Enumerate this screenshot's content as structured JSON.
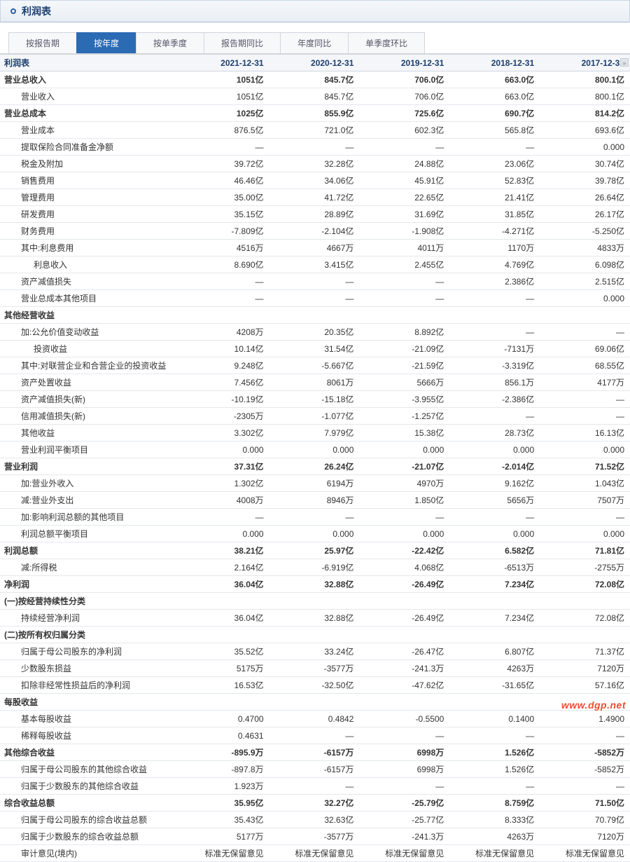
{
  "header": {
    "title": "利润表"
  },
  "tabs": [
    {
      "label": "按报告期",
      "active": false
    },
    {
      "label": "按年度",
      "active": true
    },
    {
      "label": "按单季度",
      "active": false
    },
    {
      "label": "报告期同比",
      "active": false
    },
    {
      "label": "年度同比",
      "active": false
    },
    {
      "label": "单季度环比",
      "active": false
    }
  ],
  "columns": [
    "利润表",
    "2021-12-31",
    "2020-12-31",
    "2019-12-31",
    "2018-12-31",
    "2017-12-31"
  ],
  "rows": [
    {
      "label": "营业总收入",
      "v": [
        "1051亿",
        "845.7亿",
        "706.0亿",
        "663.0亿",
        "800.1亿"
      ],
      "bold": true,
      "indent": 0
    },
    {
      "label": "营业收入",
      "v": [
        "1051亿",
        "845.7亿",
        "706.0亿",
        "663.0亿",
        "800.1亿"
      ],
      "indent": 1
    },
    {
      "label": "营业总成本",
      "v": [
        "1025亿",
        "855.9亿",
        "725.6亿",
        "690.7亿",
        "814.2亿"
      ],
      "bold": true,
      "indent": 0
    },
    {
      "label": "营业成本",
      "v": [
        "876.5亿",
        "721.0亿",
        "602.3亿",
        "565.8亿",
        "693.6亿"
      ],
      "indent": 1
    },
    {
      "label": "提取保险合同准备金净额",
      "v": [
        "—",
        "—",
        "—",
        "—",
        "0.000"
      ],
      "indent": 1
    },
    {
      "label": "税金及附加",
      "v": [
        "39.72亿",
        "32.28亿",
        "24.88亿",
        "23.06亿",
        "30.74亿"
      ],
      "indent": 1
    },
    {
      "label": "销售费用",
      "v": [
        "46.46亿",
        "34.06亿",
        "45.91亿",
        "52.83亿",
        "39.78亿"
      ],
      "indent": 1
    },
    {
      "label": "管理费用",
      "v": [
        "35.00亿",
        "41.72亿",
        "22.65亿",
        "21.41亿",
        "26.64亿"
      ],
      "indent": 1
    },
    {
      "label": "研发费用",
      "v": [
        "35.15亿",
        "28.89亿",
        "31.69亿",
        "31.85亿",
        "26.17亿"
      ],
      "indent": 1
    },
    {
      "label": "财务费用",
      "v": [
        "-7.809亿",
        "-2.104亿",
        "-1.908亿",
        "-4.271亿",
        "-5.250亿"
      ],
      "indent": 1
    },
    {
      "label": "其中:利息费用",
      "v": [
        "4516万",
        "4667万",
        "4011万",
        "1170万",
        "4833万"
      ],
      "indent": 1
    },
    {
      "label": "利息收入",
      "v": [
        "8.690亿",
        "3.415亿",
        "2.455亿",
        "4.769亿",
        "6.098亿"
      ],
      "indent": 2
    },
    {
      "label": "资产减值损失",
      "v": [
        "—",
        "—",
        "—",
        "2.386亿",
        "2.515亿"
      ],
      "indent": 1
    },
    {
      "label": "营业总成本其他项目",
      "v": [
        "—",
        "—",
        "—",
        "—",
        "0.000"
      ],
      "indent": 1
    },
    {
      "label": "其他经营收益",
      "v": [
        "",
        "",
        "",
        "",
        ""
      ],
      "bold": true,
      "indent": 0
    },
    {
      "label": "加:公允价值变动收益",
      "v": [
        "4208万",
        "20.35亿",
        "8.892亿",
        "—",
        "—"
      ],
      "indent": 1
    },
    {
      "label": "投资收益",
      "v": [
        "10.14亿",
        "31.54亿",
        "-21.09亿",
        "-7131万",
        "69.06亿"
      ],
      "indent": 2
    },
    {
      "label": "其中:对联营企业和合营企业的投资收益",
      "v": [
        "9.248亿",
        "-5.667亿",
        "-21.59亿",
        "-3.319亿",
        "68.55亿"
      ],
      "indent": 1
    },
    {
      "label": "资产处置收益",
      "v": [
        "7.456亿",
        "8061万",
        "5666万",
        "856.1万",
        "4177万"
      ],
      "indent": 1
    },
    {
      "label": "资产减值损失(新)",
      "v": [
        "-10.19亿",
        "-15.18亿",
        "-3.955亿",
        "-2.386亿",
        "—"
      ],
      "indent": 1
    },
    {
      "label": "信用减值损失(新)",
      "v": [
        "-2305万",
        "-1.077亿",
        "-1.257亿",
        "—",
        "—"
      ],
      "indent": 1
    },
    {
      "label": "其他收益",
      "v": [
        "3.302亿",
        "7.979亿",
        "15.38亿",
        "28.73亿",
        "16.13亿"
      ],
      "indent": 1
    },
    {
      "label": "营业利润平衡项目",
      "v": [
        "0.000",
        "0.000",
        "0.000",
        "0.000",
        "0.000"
      ],
      "indent": 1
    },
    {
      "label": "营业利润",
      "v": [
        "37.31亿",
        "26.24亿",
        "-21.07亿",
        "-2.014亿",
        "71.52亿"
      ],
      "bold": true,
      "indent": 0
    },
    {
      "label": "加:营业外收入",
      "v": [
        "1.302亿",
        "6194万",
        "4970万",
        "9.162亿",
        "1.043亿"
      ],
      "indent": 1
    },
    {
      "label": "减:营业外支出",
      "v": [
        "4008万",
        "8946万",
        "1.850亿",
        "5656万",
        "7507万"
      ],
      "indent": 1
    },
    {
      "label": "加:影响利润总额的其他项目",
      "v": [
        "—",
        "—",
        "—",
        "—",
        "—"
      ],
      "indent": 1
    },
    {
      "label": "利润总额平衡项目",
      "v": [
        "0.000",
        "0.000",
        "0.000",
        "0.000",
        "0.000"
      ],
      "indent": 1
    },
    {
      "label": "利润总额",
      "v": [
        "38.21亿",
        "25.97亿",
        "-22.42亿",
        "6.582亿",
        "71.81亿"
      ],
      "bold": true,
      "indent": 0
    },
    {
      "label": "减:所得税",
      "v": [
        "2.164亿",
        "-6.919亿",
        "4.068亿",
        "-6513万",
        "-2755万"
      ],
      "indent": 1
    },
    {
      "label": "净利润",
      "v": [
        "36.04亿",
        "32.88亿",
        "-26.49亿",
        "7.234亿",
        "72.08亿"
      ],
      "bold": true,
      "indent": 0
    },
    {
      "label": "(一)按经营持续性分类",
      "v": [
        "",
        "",
        "",
        "",
        ""
      ],
      "bold": true,
      "indent": 0
    },
    {
      "label": "持续经营净利润",
      "v": [
        "36.04亿",
        "32.88亿",
        "-26.49亿",
        "7.234亿",
        "72.08亿"
      ],
      "indent": 1
    },
    {
      "label": "(二)按所有权归属分类",
      "v": [
        "",
        "",
        "",
        "",
        ""
      ],
      "bold": true,
      "indent": 0
    },
    {
      "label": "归属于母公司股东的净利润",
      "v": [
        "35.52亿",
        "33.24亿",
        "-26.47亿",
        "6.807亿",
        "71.37亿"
      ],
      "indent": 1
    },
    {
      "label": "少数股东损益",
      "v": [
        "5175万",
        "-3577万",
        "-241.3万",
        "4263万",
        "7120万"
      ],
      "indent": 1
    },
    {
      "label": "扣除非经常性损益后的净利润",
      "v": [
        "16.53亿",
        "-32.50亿",
        "-47.62亿",
        "-31.65亿",
        "57.16亿"
      ],
      "indent": 1
    },
    {
      "label": "每股收益",
      "v": [
        "",
        "",
        "",
        "",
        ""
      ],
      "bold": true,
      "indent": 0
    },
    {
      "label": "基本每股收益",
      "v": [
        "0.4700",
        "0.4842",
        "-0.5500",
        "0.1400",
        "1.4900"
      ],
      "indent": 1
    },
    {
      "label": "稀释每股收益",
      "v": [
        "0.4631",
        "—",
        "—",
        "—",
        "—"
      ],
      "indent": 1
    },
    {
      "label": "其他综合收益",
      "v": [
        "-895.9万",
        "-6157万",
        "6998万",
        "1.526亿",
        "-5852万"
      ],
      "bold": true,
      "indent": 0
    },
    {
      "label": "归属于母公司股东的其他综合收益",
      "v": [
        "-897.8万",
        "-6157万",
        "6998万",
        "1.526亿",
        "-5852万"
      ],
      "indent": 1
    },
    {
      "label": "归属于少数股东的其他综合收益",
      "v": [
        "1.923万",
        "—",
        "—",
        "—",
        "—"
      ],
      "indent": 1
    },
    {
      "label": "综合收益总额",
      "v": [
        "35.95亿",
        "32.27亿",
        "-25.79亿",
        "8.759亿",
        "71.50亿"
      ],
      "bold": true,
      "indent": 0
    },
    {
      "label": "归属于母公司股东的综合收益总额",
      "v": [
        "35.43亿",
        "32.63亿",
        "-25.77亿",
        "8.333亿",
        "70.79亿"
      ],
      "indent": 1
    },
    {
      "label": "归属于少数股东的综合收益总额",
      "v": [
        "5177万",
        "-3577万",
        "-241.3万",
        "4263万",
        "7120万"
      ],
      "indent": 1
    },
    {
      "label": "审计意见(境内)",
      "v": [
        "标准无保留意见",
        "标准无保留意见",
        "标准无保留意见",
        "标准无保留意见",
        "标准无保留意见"
      ],
      "indent": 1
    }
  ],
  "watermark": "www.dgp.net",
  "scroll_hint": "»"
}
